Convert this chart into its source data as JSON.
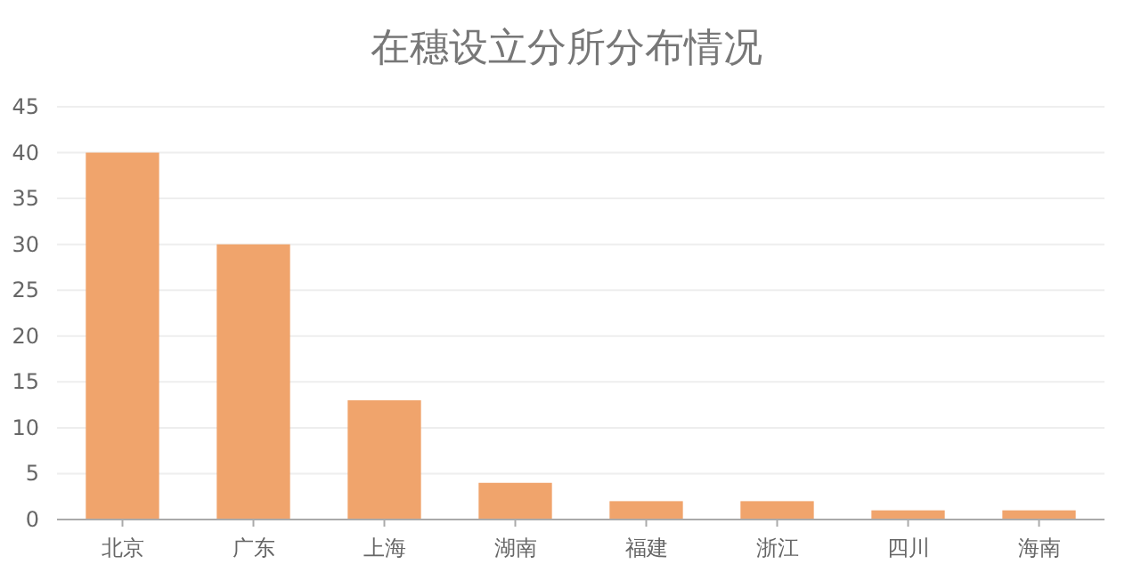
{
  "chart_data": {
    "type": "bar",
    "title": "在穗设立分所分布情况",
    "categories": [
      "北京",
      "广东",
      "上海",
      "湖南",
      "福建",
      "浙江",
      "四川",
      "海南"
    ],
    "values": [
      40,
      30,
      13,
      4,
      2,
      2,
      1,
      1
    ],
    "color": "#f0a46c",
    "ylim": [
      0,
      45
    ],
    "yticks": [
      0,
      5,
      10,
      15,
      20,
      25,
      30,
      35,
      40,
      45
    ],
    "grid": "y"
  }
}
